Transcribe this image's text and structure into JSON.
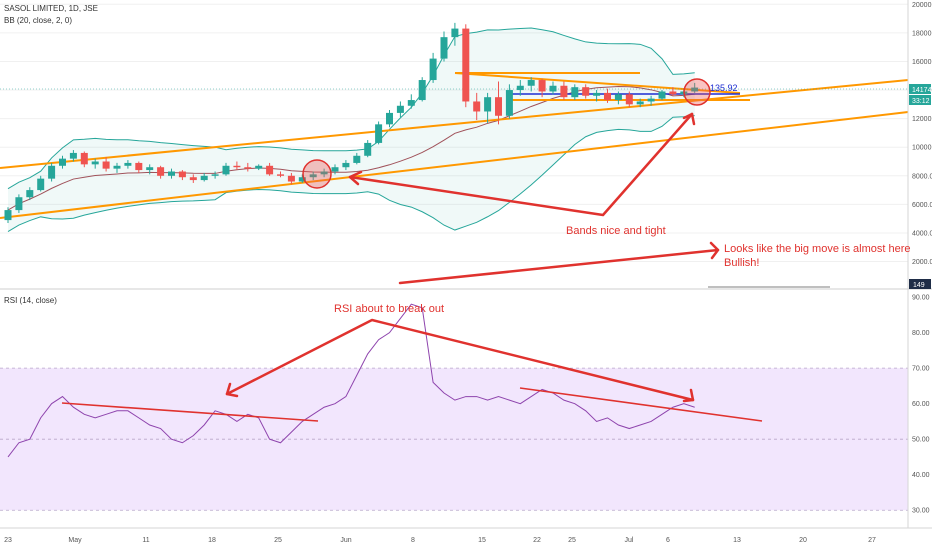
{
  "header": {
    "symbol": "SASOL LIMITED, 1D, JSE",
    "bb_label": "BB (20, close, 2, 0)",
    "rsi_label": "RSI (14, close)"
  },
  "price_axis": {
    "ticks": [
      "20000.00",
      "18000.00",
      "16000.00",
      "14000.00",
      "12000.00",
      "10000.00",
      "8000.00",
      "6000.00",
      "4000.00",
      "2000.00"
    ],
    "price_tag": "14174",
    "countdown_tag": "33:12",
    "bottom_tag": "149",
    "line_label": "135.92"
  },
  "rsi_axis": {
    "ticks": [
      "90.00",
      "80.00",
      "70.00",
      "60.00",
      "50.00",
      "40.00",
      "30.00"
    ]
  },
  "time_axis": {
    "labels": [
      "23",
      "May",
      "11",
      "18",
      "25",
      "Jun",
      "8",
      "15",
      "22",
      "25",
      "Jul",
      "6",
      "13",
      "20",
      "27"
    ]
  },
  "annotations": {
    "bands": "Bands nice and tight",
    "big_move": "Looks like the big move is almost here",
    "bullish": "Bullish!",
    "rsi_breakout": "RSI about to break out"
  },
  "colors": {
    "up": "#26a69a",
    "down": "#ef5350",
    "trend": "#ff9800",
    "arrow": "#e0322e",
    "bb_fill": "#26a69a",
    "rsi_band": "#e9d5fb",
    "rsi_line": "#8e44ad",
    "blue_line": "#1e2dd1"
  },
  "chart_data": [
    {
      "type": "candlestick",
      "title": "SASOL LIMITED, 1D, JSE",
      "ylim": [
        149,
        20300
      ],
      "candles": [
        {
          "o": 4900,
          "h": 5800,
          "l": 4700,
          "c": 5600
        },
        {
          "o": 5600,
          "h": 6700,
          "l": 5400,
          "c": 6500
        },
        {
          "o": 6500,
          "h": 7200,
          "l": 6300,
          "c": 7000
        },
        {
          "o": 7000,
          "h": 8000,
          "l": 6900,
          "c": 7800
        },
        {
          "o": 7800,
          "h": 8900,
          "l": 7600,
          "c": 8700
        },
        {
          "o": 8700,
          "h": 9400,
          "l": 8500,
          "c": 9200
        },
        {
          "o": 9200,
          "h": 9800,
          "l": 9000,
          "c": 9600
        },
        {
          "o": 9600,
          "h": 9700,
          "l": 8600,
          "c": 8800
        },
        {
          "o": 8800,
          "h": 9200,
          "l": 8500,
          "c": 9000
        },
        {
          "o": 9000,
          "h": 9300,
          "l": 8300,
          "c": 8500
        },
        {
          "o": 8500,
          "h": 8900,
          "l": 8200,
          "c": 8700
        },
        {
          "o": 8700,
          "h": 9100,
          "l": 8500,
          "c": 8900
        },
        {
          "o": 8900,
          "h": 9000,
          "l": 8200,
          "c": 8400
        },
        {
          "o": 8400,
          "h": 8800,
          "l": 8100,
          "c": 8600
        },
        {
          "o": 8600,
          "h": 8700,
          "l": 7800,
          "c": 8000
        },
        {
          "o": 8000,
          "h": 8500,
          "l": 7800,
          "c": 8300
        },
        {
          "o": 8300,
          "h": 8400,
          "l": 7700,
          "c": 7900
        },
        {
          "o": 7900,
          "h": 8100,
          "l": 7500,
          "c": 7700
        },
        {
          "o": 7700,
          "h": 8200,
          "l": 7600,
          "c": 8000
        },
        {
          "o": 8000,
          "h": 8300,
          "l": 7800,
          "c": 8100
        },
        {
          "o": 8100,
          "h": 8900,
          "l": 8000,
          "c": 8700
        },
        {
          "o": 8700,
          "h": 9000,
          "l": 8400,
          "c": 8600
        },
        {
          "o": 8600,
          "h": 8900,
          "l": 8300,
          "c": 8500
        },
        {
          "o": 8500,
          "h": 8800,
          "l": 8400,
          "c": 8700
        },
        {
          "o": 8700,
          "h": 8900,
          "l": 8000,
          "c": 8100
        },
        {
          "o": 8100,
          "h": 8300,
          "l": 7900,
          "c": 8000
        },
        {
          "o": 8000,
          "h": 8200,
          "l": 7400,
          "c": 7600
        },
        {
          "o": 7600,
          "h": 8100,
          "l": 7500,
          "c": 7900
        },
        {
          "o": 7900,
          "h": 8300,
          "l": 7700,
          "c": 8100
        },
        {
          "o": 8100,
          "h": 8500,
          "l": 7900,
          "c": 8300
        },
        {
          "o": 8300,
          "h": 8800,
          "l": 8100,
          "c": 8600
        },
        {
          "o": 8600,
          "h": 9100,
          "l": 8400,
          "c": 8900
        },
        {
          "o": 8900,
          "h": 9600,
          "l": 8800,
          "c": 9400
        },
        {
          "o": 9400,
          "h": 10500,
          "l": 9300,
          "c": 10300
        },
        {
          "o": 10300,
          "h": 11800,
          "l": 10200,
          "c": 11600
        },
        {
          "o": 11600,
          "h": 12600,
          "l": 11400,
          "c": 12400
        },
        {
          "o": 12400,
          "h": 13200,
          "l": 12100,
          "c": 12900
        },
        {
          "o": 12900,
          "h": 13700,
          "l": 12700,
          "c": 13300
        },
        {
          "o": 13300,
          "h": 14900,
          "l": 13200,
          "c": 14700
        },
        {
          "o": 14700,
          "h": 16600,
          "l": 14500,
          "c": 16200
        },
        {
          "o": 16200,
          "h": 18100,
          "l": 16000,
          "c": 17700
        },
        {
          "o": 17700,
          "h": 18700,
          "l": 17100,
          "c": 18300
        },
        {
          "o": 18300,
          "h": 18600,
          "l": 12800,
          "c": 13200
        },
        {
          "o": 13200,
          "h": 13800,
          "l": 11900,
          "c": 12500
        },
        {
          "o": 12500,
          "h": 13800,
          "l": 11700,
          "c": 13500
        },
        {
          "o": 13500,
          "h": 14600,
          "l": 11600,
          "c": 12200
        },
        {
          "o": 12200,
          "h": 14400,
          "l": 12000,
          "c": 14000
        },
        {
          "o": 14000,
          "h": 14700,
          "l": 13600,
          "c": 14300
        },
        {
          "o": 14300,
          "h": 14900,
          "l": 13900,
          "c": 14700
        },
        {
          "o": 14700,
          "h": 14800,
          "l": 13500,
          "c": 13900
        },
        {
          "o": 13900,
          "h": 14600,
          "l": 13700,
          "c": 14300
        },
        {
          "o": 14300,
          "h": 14600,
          "l": 13300,
          "c": 13500
        },
        {
          "o": 13500,
          "h": 14400,
          "l": 13300,
          "c": 14200
        },
        {
          "o": 14200,
          "h": 14400,
          "l": 13400,
          "c": 13600
        },
        {
          "o": 13600,
          "h": 14000,
          "l": 13200,
          "c": 13800
        },
        {
          "o": 13800,
          "h": 14100,
          "l": 13100,
          "c": 13300
        },
        {
          "o": 13300,
          "h": 13900,
          "l": 13000,
          "c": 13700
        },
        {
          "o": 13700,
          "h": 13900,
          "l": 12800,
          "c": 13000
        },
        {
          "o": 13000,
          "h": 13400,
          "l": 12800,
          "c": 13200
        },
        {
          "o": 13200,
          "h": 13600,
          "l": 12900,
          "c": 13400
        },
        {
          "o": 13400,
          "h": 14000,
          "l": 13300,
          "c": 13900
        },
        {
          "o": 13900,
          "h": 14200,
          "l": 13600,
          "c": 13700
        },
        {
          "o": 13700,
          "h": 14100,
          "l": 13500,
          "c": 13900
        },
        {
          "o": 13900,
          "h": 14500,
          "l": 13800,
          "c": 14174
        }
      ]
    },
    {
      "type": "line",
      "title": "RSI (14, close)",
      "ylim": [
        25,
        92
      ],
      "band": [
        30,
        70
      ],
      "values": [
        45,
        49,
        50,
        56,
        60,
        62,
        59,
        57,
        56,
        57,
        58,
        58,
        56,
        54,
        53,
        50,
        49,
        51,
        54,
        58,
        57,
        55,
        57,
        56,
        50,
        49,
        52,
        55,
        57,
        59,
        60,
        62,
        68,
        74,
        78,
        80,
        84,
        88,
        87,
        66,
        63,
        61,
        62,
        62,
        61,
        62,
        61,
        60,
        62,
        64,
        63,
        61,
        60,
        58,
        55,
        56,
        54,
        53,
        54,
        55,
        57,
        59,
        60,
        59
      ]
    }
  ]
}
